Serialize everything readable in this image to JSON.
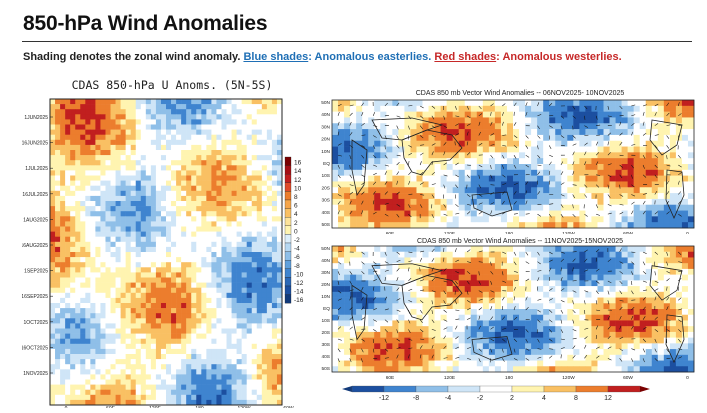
{
  "header": {
    "title": "850-hPa Wind Anomalies",
    "caption_text": "Shading denotes the zonal wind anomaly.",
    "blue_link": "Blue shades",
    "blue_desc": ": Anomalous easterlies.",
    "red_link": "Red shades",
    "red_desc": ": Anomalous westerlies."
  },
  "hovmoller": {
    "title": "CDAS 850-hPa U Anoms. (5N-5S)",
    "dates": [
      "1JUN2025",
      "16JUN2025",
      "1JUL2025",
      "16JUL2025",
      "1AUG2025",
      "16AUG2025",
      "1SEP2025",
      "16SEP2025",
      "1OCT2025",
      "16OCT2025",
      "1NOV2025"
    ],
    "lon_labels": [
      "0",
      "60E",
      "120E",
      "180",
      "120W",
      "60W"
    ],
    "colorbar_labels": [
      "16",
      "14",
      "12",
      "10",
      "8",
      "6",
      "4",
      "2",
      "0",
      "-2",
      "-4",
      "-6",
      "-8",
      "-10",
      "-12",
      "-14",
      "-16"
    ]
  },
  "map1": {
    "title": "CDAS 850 mb Vector Wind Anomalies -- 06NOV2025- 10NOV2025"
  },
  "map2": {
    "title": "CDAS 850 mb Vector Wind Anomalies -- 11NOV2025-15NOV2025"
  },
  "map_common": {
    "lat_labels": [
      "50N",
      "40N",
      "30N",
      "20N",
      "10N",
      "EQ",
      "10S",
      "20S",
      "30S",
      "40S",
      "50S"
    ],
    "lon_labels": [
      "60E",
      "120E",
      "180",
      "120W",
      "60W",
      "0"
    ]
  },
  "colorbar": {
    "labels": [
      "-12",
      "-8",
      "-4",
      "-2",
      "2",
      "4",
      "8",
      "12"
    ]
  },
  "palette": {
    "dark_blue": "#1c4fa0",
    "mid_blue": "#3f84cf",
    "light_blue": "#8fbfe8",
    "pale_blue": "#cfe5f7",
    "pale_yellow": "#fff4b0",
    "light_orange": "#f9c063",
    "orange": "#ec7d2d",
    "dark_red": "#c11f1f"
  }
}
